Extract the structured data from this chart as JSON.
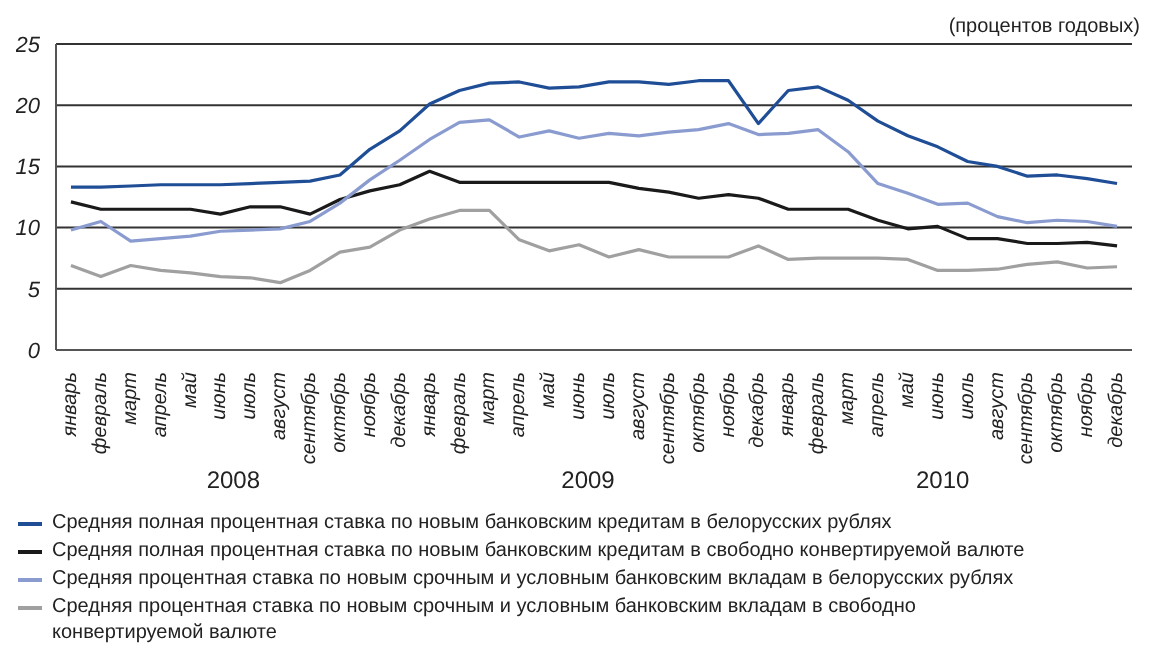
{
  "chart_data": {
    "type": "line",
    "ylabel": "(процентов годовых)",
    "categories": [
      "январь",
      "февраль",
      "март",
      "апрель",
      "май",
      "июнь",
      "июль",
      "август",
      "сентябрь",
      "октябрь",
      "ноябрь",
      "декабрь",
      "январь",
      "февраль",
      "март",
      "апрель",
      "май",
      "июнь",
      "июль",
      "август",
      "сентябрь",
      "октябрь",
      "ноябрь",
      "декабрь",
      "январь",
      "февраль",
      "март",
      "апрель",
      "май",
      "июнь",
      "июль",
      "август",
      "сентябрь",
      "октябрь",
      "ноябрь",
      "декабрь"
    ],
    "annotations": [
      "2008",
      "2009",
      "2010"
    ],
    "series": [
      {
        "name": "Средняя полная процентная ставка по новым банковским кредитам в белорусских рублях",
        "color": "#1f4e96",
        "values": [
          13.3,
          13.3,
          13.4,
          13.5,
          13.5,
          13.5,
          13.6,
          13.7,
          13.8,
          14.3,
          16.4,
          17.9,
          20.1,
          21.2,
          21.8,
          21.9,
          21.4,
          21.5,
          21.9,
          21.9,
          21.7,
          22,
          22,
          18.5,
          21.2,
          21.5,
          20.4,
          18.7,
          17.5,
          16.6,
          15.4,
          15,
          14.2,
          14.3,
          14,
          13.6
        ]
      },
      {
        "name": "Средняя полная процентная ставка по новым банковским кредитам в свободно конвертируемой валюте",
        "color": "#1a1a1a",
        "values": [
          12.1,
          11.5,
          11.5,
          11.5,
          11.5,
          11.1,
          11.7,
          11.7,
          11.1,
          12.3,
          13,
          13.5,
          14.6,
          13.7,
          13.7,
          13.7,
          13.7,
          13.7,
          13.7,
          13.2,
          12.9,
          12.4,
          12.7,
          12.4,
          11.5,
          11.5,
          11.5,
          10.6,
          9.9,
          10.1,
          9.1,
          9.1,
          8.7,
          8.7,
          8.8,
          8.5
        ]
      },
      {
        "name": "Средняя процентная ставка по новым срочным и условным банковским вкладам в белорусских рублях",
        "color": "#8a9bd0",
        "values": [
          9.8,
          10.5,
          8.9,
          9.1,
          9.3,
          9.7,
          9.8,
          9.9,
          10.5,
          12,
          13.9,
          15.5,
          17.2,
          18.6,
          18.8,
          17.4,
          17.9,
          17.3,
          17.7,
          17.5,
          17.8,
          18,
          18.5,
          17.6,
          17.7,
          18,
          16.2,
          13.6,
          12.8,
          11.9,
          12,
          10.9,
          10.4,
          10.6,
          10.5,
          10.1
        ]
      },
      {
        "name": "Средняя процентная ставка по новым срочным и условным банковским вкладам в свободно конвертируемой валюте",
        "color": "#a0a0a0",
        "values": [
          6.9,
          6,
          6.9,
          6.5,
          6.3,
          6,
          5.9,
          5.5,
          6.5,
          8,
          8.4,
          9.8,
          10.7,
          11.4,
          11.4,
          9,
          8.1,
          8.6,
          7.6,
          8.2,
          7.6,
          7.6,
          7.6,
          8.5,
          7.4,
          7.5,
          7.5,
          7.5,
          7.4,
          6.5,
          6.5,
          6.6,
          7,
          7.2,
          6.7,
          6.8
        ]
      }
    ],
    "ylim": [
      0,
      25
    ],
    "yticks": [
      0,
      5,
      10,
      15,
      20,
      25
    ],
    "grid": "y",
    "legend": "bottom",
    "marker": "none",
    "line_style": "solid"
  }
}
